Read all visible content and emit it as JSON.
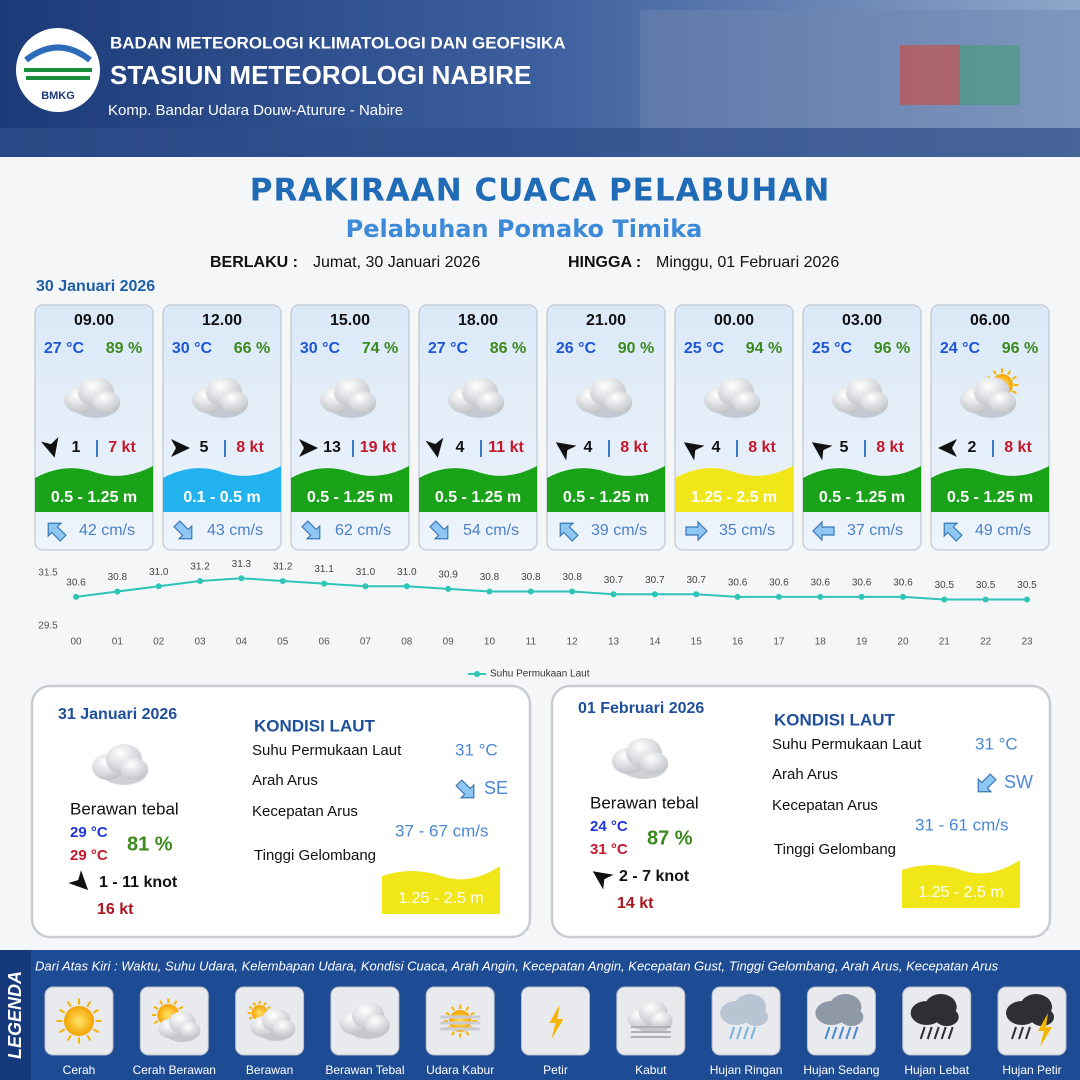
{
  "header": {
    "logo": "BMKG",
    "organization": "BADAN METEOROLOGI KLIMATOLOGI DAN GEOFISIKA",
    "station": "STASIUN METEOROLOGI NABIRE",
    "address": "Komp. Bandar Udara Douw-Aturure - Nabire"
  },
  "title": "PRAKIRAAN CUACA PELABUHAN",
  "subtitle": "Pelabuhan Pomako Timika",
  "validity": {
    "from_label": "BERLAKU :",
    "from": "Jumat, 30 Januari 2026",
    "to_label": "HINGGA :",
    "to": "Minggu, 01 Februari 2026"
  },
  "day1_date": "30 Januari 2026",
  "cards": [
    {
      "time": "09.00",
      "temperature": "27 °C",
      "humidity": "89 %",
      "wind": "1",
      "gust": "7 kt",
      "wave": "0.5 - 1.25 m",
      "wave_color": "#1aa319",
      "current": "42 cm/s"
    },
    {
      "time": "12.00",
      "temperature": "30 °C",
      "humidity": "66 %",
      "wind": "5",
      "gust": "8 kt",
      "wave": "0.1 - 0.5 m",
      "wave_color": "#22b2ee",
      "current": "43 cm/s"
    },
    {
      "time": "15.00",
      "temperature": "30 °C",
      "humidity": "74 %",
      "wind": "13",
      "gust": "19 kt",
      "wave": "0.5 - 1.25 m",
      "wave_color": "#1aa319",
      "current": "62 cm/s"
    },
    {
      "time": "18.00",
      "temperature": "27 °C",
      "humidity": "86 %",
      "wind": "4",
      "gust": "11 kt",
      "wave": "0.5 - 1.25 m",
      "wave_color": "#1aa319",
      "current": "54 cm/s"
    },
    {
      "time": "21.00",
      "temperature": "26 °C",
      "humidity": "90 %",
      "wind": "4",
      "gust": "8 kt",
      "wave": "0.5 - 1.25 m",
      "wave_color": "#1aa319",
      "current": "39 cm/s"
    },
    {
      "time": "00.00",
      "temperature": "25 °C",
      "humidity": "94 %",
      "wind": "4",
      "gust": "8 kt",
      "wave": "1.25 - 2.5 m",
      "wave_color": "#f1e617",
      "current": "35 cm/s"
    },
    {
      "time": "03.00",
      "temperature": "25 °C",
      "humidity": "96 %",
      "wind": "5",
      "gust": "8 kt",
      "wave": "0.5 - 1.25 m",
      "wave_color": "#1aa319",
      "current": "37 cm/s"
    },
    {
      "time": "06.00",
      "temperature": "24 °C",
      "humidity": "96 %",
      "wind": "2",
      "gust": "8 kt",
      "wave": "0.5 - 1.25 m",
      "wave_color": "#1aa319",
      "current": "49 cm/s"
    }
  ],
  "chart_data": {
    "type": "line",
    "categories": [
      "00",
      "01",
      "02",
      "03",
      "04",
      "05",
      "06",
      "07",
      "08",
      "09",
      "10",
      "11",
      "12",
      "13",
      "14",
      "15",
      "16",
      "17",
      "18",
      "19",
      "20",
      "21",
      "22",
      "23"
    ],
    "series": [
      {
        "name": "Suhu Permukaan Laut",
        "color": "#2ec4b6",
        "values": [
          30.6,
          30.8,
          31.0,
          31.2,
          31.3,
          31.2,
          31.1,
          31.0,
          31.0,
          30.9,
          30.8,
          30.8,
          30.8,
          30.7,
          30.7,
          30.7,
          30.6,
          30.6,
          30.6,
          30.6,
          30.6,
          30.5,
          30.5,
          30.5
        ],
        "value_labels": [
          "30.6",
          "30.8",
          "31.0",
          "31.2",
          "31.3",
          "31.2",
          "31.1",
          "31.0",
          "31.0",
          "30.9",
          "30.8",
          "30.8",
          "30.8",
          "30.7",
          "30.7",
          "30.7",
          "30.6",
          "30.6",
          "30.6",
          "30.6",
          "30.6",
          "30.5",
          "30.5",
          "30.5"
        ]
      }
    ],
    "ylim": [
      29.5,
      31.5
    ],
    "yticks": [
      29.5,
      31.5
    ],
    "legend": "bottom"
  },
  "days": [
    {
      "date": "31 Januari 2026",
      "condition": "Berawan tebal",
      "temp_min": "29 °C",
      "temp_max": "29 °C",
      "humidity": "81 %",
      "wind": "1 - 11 knot",
      "gust": "16 kt",
      "sea_title": "KONDISI LAUT",
      "sst_label": "Suhu Permukaan Laut",
      "sst": "31 °C",
      "current_dir_label": "Arah Arus",
      "current_dir": "SE",
      "current_speed_label": "Kecepatan Arus",
      "current_speed": "37 - 67 cm/s",
      "wave_label": "Tinggi Gelombang",
      "wave": "1.25 - 2.5 m"
    },
    {
      "date": "01 Februari 2026",
      "condition": "Berawan tebal",
      "temp_min": "24 °C",
      "temp_max": "31 °C",
      "humidity": "87 %",
      "wind": "2 - 7 knot",
      "gust": "14 kt",
      "sea_title": "KONDISI LAUT",
      "sst_label": "Suhu Permukaan Laut",
      "sst": "31 °C",
      "current_dir_label": "Arah Arus",
      "current_dir": "SW",
      "current_speed_label": "Kecepatan Arus",
      "current_speed": "31 - 61 cm/s",
      "wave_label": "Tinggi Gelombang",
      "wave": "1.25 - 2.5 m"
    }
  ],
  "legend": {
    "title": "LEGENDA",
    "description": "Dari Atas Kiri : Waktu, Suhu Udara, Kelembapan Udara, Kondisi Cuaca, Arah Angin, Kecepatan Angin, Kecepatan Gust, Tinggi Gelombang, Arah Arus, Kecepatan Arus",
    "items": [
      "Cerah",
      "Cerah Berawan",
      "Berawan",
      "Berawan Tebal",
      "Udara Kabur",
      "Petir",
      "Kabut",
      "Hujan Ringan",
      "Hujan Sedang",
      "Hujan Lebat",
      "Hujan Petir"
    ]
  }
}
